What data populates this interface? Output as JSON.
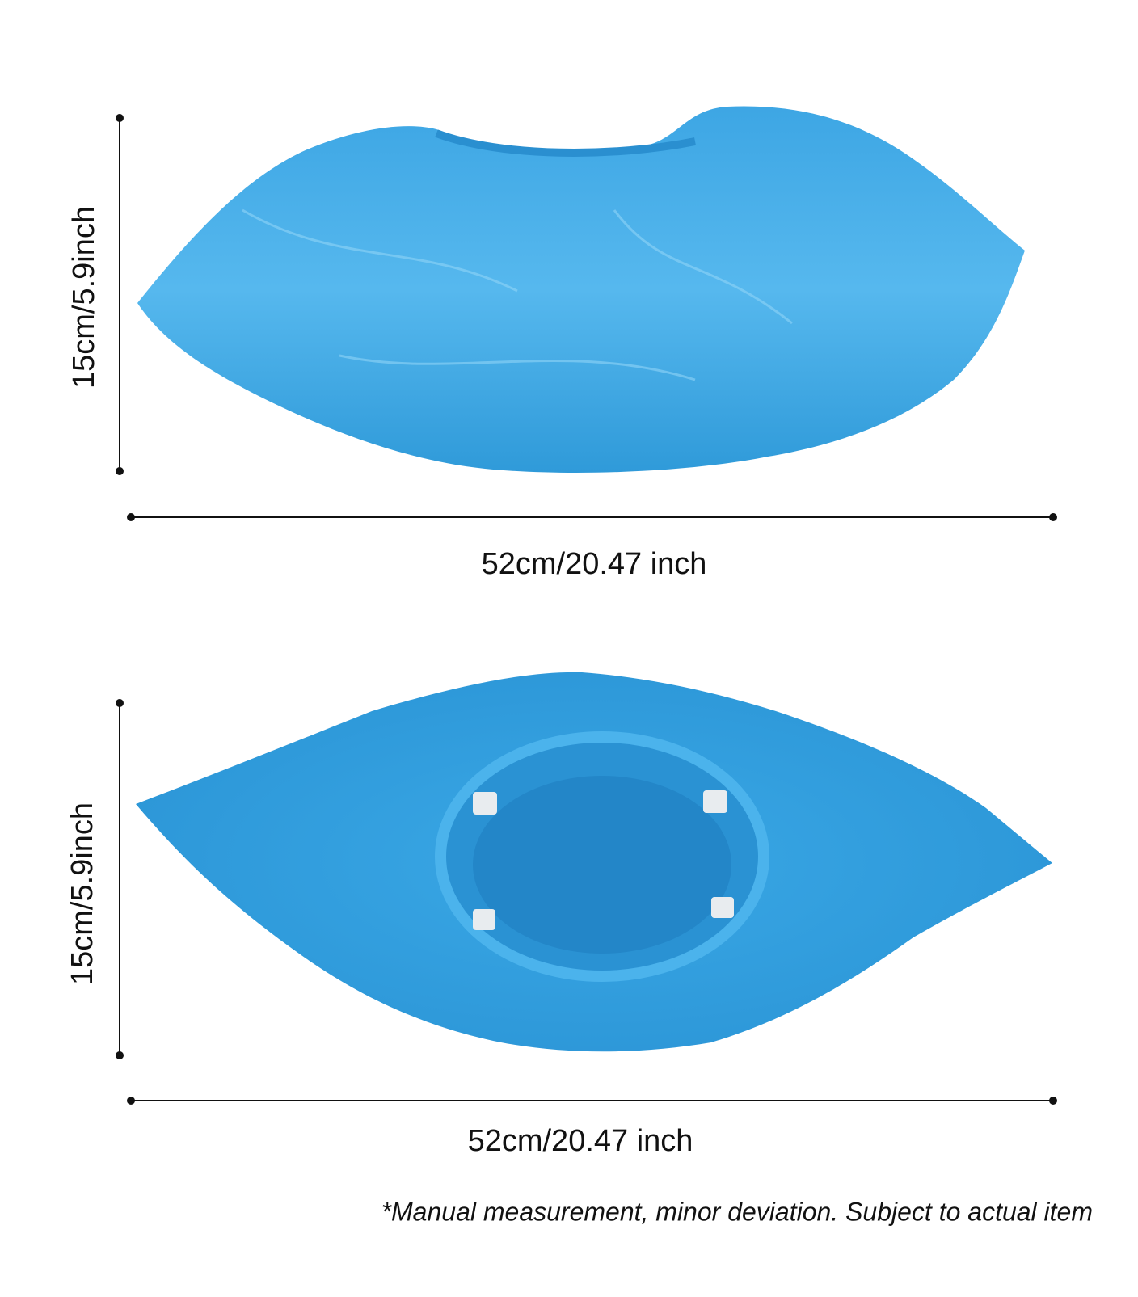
{
  "products": [
    {
      "height_label": "15cm/5.9inch",
      "width_label": "52cm/20.47 inch"
    },
    {
      "height_label": "15cm/5.9inch",
      "width_label": "52cm/20.47 inch"
    }
  ],
  "note": "*Manual measurement, minor deviation. Subject to actual item"
}
